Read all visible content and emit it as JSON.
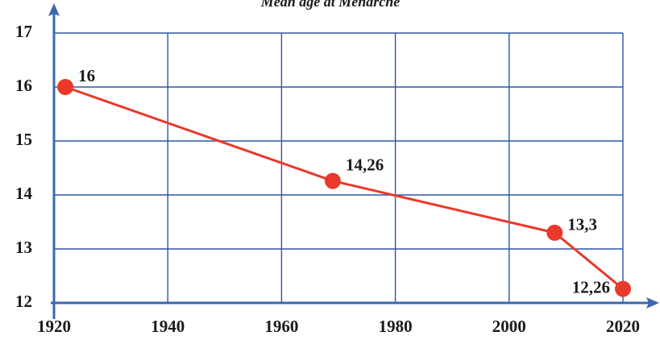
{
  "chart_data": {
    "type": "line",
    "title": "Mean age at Menarche",
    "x": [
      1922,
      1969,
      2008,
      2020
    ],
    "series": [
      {
        "name": null,
        "color": "#e8392a",
        "values": [
          16,
          14.26,
          13.3,
          12.26
        ],
        "value_labels": [
          "16",
          "14,26",
          "13,3",
          "12,26"
        ]
      }
    ],
    "xlim": [
      1920,
      2020
    ],
    "xticks": [
      1920,
      1940,
      1960,
      1980,
      2000,
      2020
    ],
    "ylim": [
      12,
      17
    ],
    "yticks": [
      12,
      13,
      14,
      15,
      16,
      17
    ],
    "grid": true,
    "grid_color": "#2d56a6",
    "axis_color": "#3a67b0"
  }
}
